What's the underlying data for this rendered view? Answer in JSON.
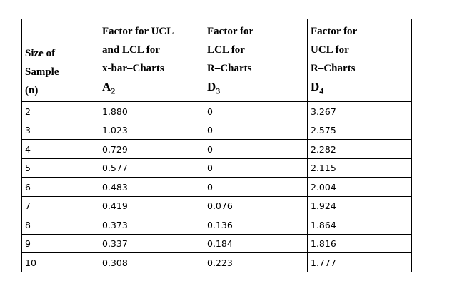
{
  "table": {
    "header": [
      {
        "lines": [
          "Size of",
          "Sample",
          "(n)"
        ]
      },
      {
        "lines": [
          "Factor for UCL",
          "and LCL for",
          "x-bar–Charts"
        ],
        "symbol": {
          "base": "A",
          "sub": "2"
        }
      },
      {
        "lines": [
          "Factor for",
          "LCL for",
          "R–Charts"
        ],
        "symbol": {
          "base": "D",
          "sub": "3"
        }
      },
      {
        "lines": [
          "Factor for",
          "UCL for",
          "R–Charts"
        ],
        "symbol": {
          "base": "D",
          "sub": "4"
        }
      }
    ],
    "rows": [
      [
        "2",
        "1.880",
        "0",
        "3.267"
      ],
      [
        "3",
        "1.023",
        "0",
        "2.575"
      ],
      [
        "4",
        "0.729",
        "0",
        "2.282"
      ],
      [
        "5",
        "0.577",
        "0",
        "2.115"
      ],
      [
        "6",
        "0.483",
        "0",
        "2.004"
      ],
      [
        "7",
        "0.419",
        "0.076",
        "1.924"
      ],
      [
        "8",
        "0.373",
        "0.136",
        "1.864"
      ],
      [
        "9",
        "0.337",
        "0.184",
        "1.816"
      ],
      [
        "10",
        "0.308",
        "0.223",
        "1.777"
      ]
    ]
  }
}
